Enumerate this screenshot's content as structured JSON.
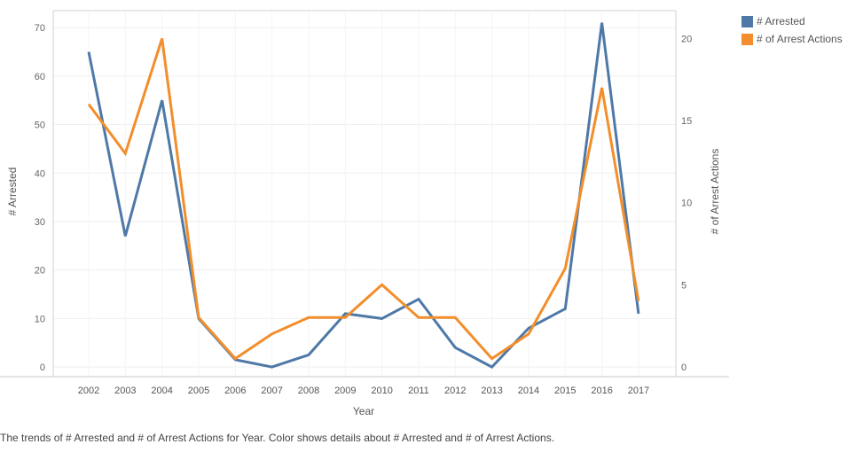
{
  "chart_data": {
    "type": "line",
    "xlabel": "Year",
    "ylabel_left": "# Arrested",
    "ylabel_right": "# of Arrest Actions",
    "categories": [
      "2002",
      "2003",
      "2004",
      "2005",
      "2006",
      "2007",
      "2008",
      "2009",
      "2010",
      "2011",
      "2012",
      "2013",
      "2014",
      "2015",
      "2016",
      "2017"
    ],
    "series": [
      {
        "name": "# Arrested",
        "axis": "left",
        "color": "#4e79a7",
        "values": [
          65,
          27,
          55,
          10,
          1.5,
          0,
          2.5,
          11,
          10,
          14,
          4,
          0,
          8,
          12,
          71,
          11
        ]
      },
      {
        "name": "# of Arrest Actions",
        "axis": "right",
        "color": "#f28e2b",
        "values": [
          16,
          13,
          20,
          3,
          0.5,
          2,
          3,
          3,
          5,
          3,
          3,
          0.5,
          2,
          6,
          17,
          4
        ]
      }
    ],
    "ylim_left": [
      -2,
      73.5
    ],
    "ylim_right": [
      -0.6,
      21.7
    ],
    "yticks_left": [
      "0",
      "10",
      "20",
      "30",
      "40",
      "50",
      "60",
      "70"
    ],
    "yticks_right": [
      "0",
      "5",
      "10",
      "15",
      "20"
    ],
    "grid": true,
    "legend_position": "top-right"
  },
  "caption": "The trends of # Arrested and # of Arrest Actions for Year.  Color shows details about # Arrested and # of Arrest Actions."
}
